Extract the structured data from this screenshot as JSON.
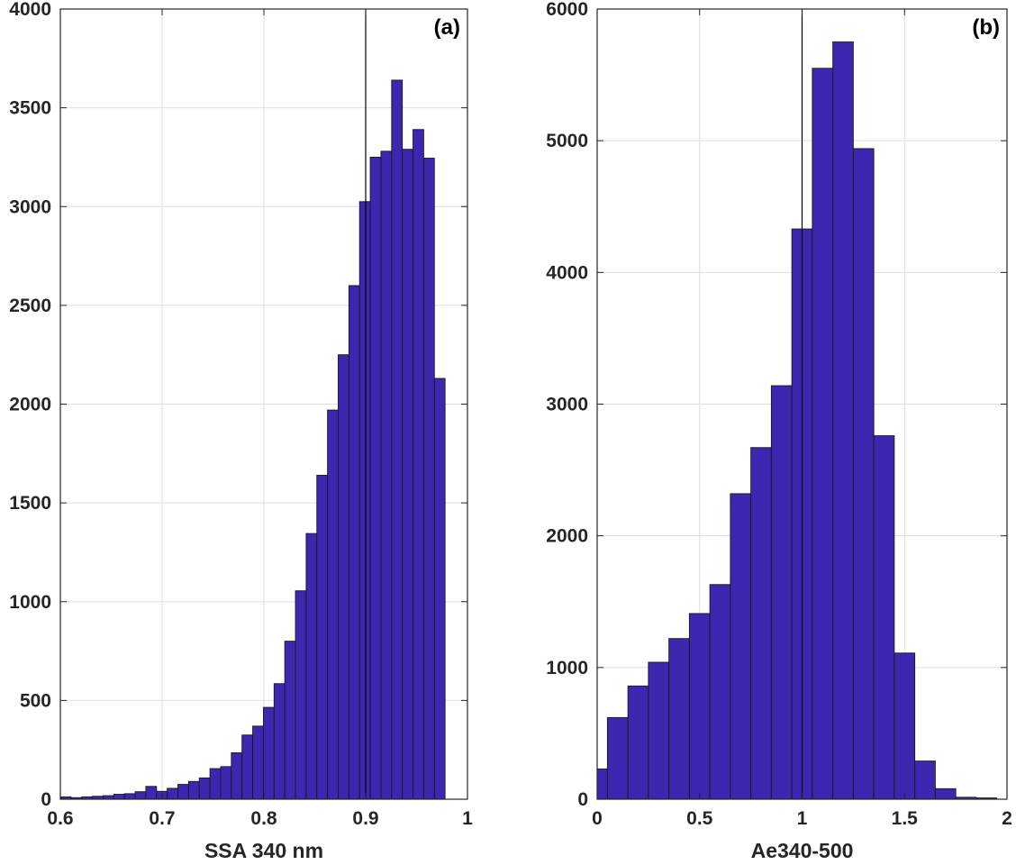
{
  "chart_data": [
    {
      "type": "bar",
      "panel_label": "(a)",
      "xlabel": "SSA 340 nm",
      "ylabel": "",
      "xlim": [
        0.6,
        1.0
      ],
      "ylim": [
        0,
        4000
      ],
      "xticks": [
        "0.6",
        "0.7",
        "0.8",
        "0.9",
        "1"
      ],
      "yticks": [
        "0",
        "500",
        "1000",
        "1500",
        "2000",
        "2500",
        "3000",
        "3500",
        "4000"
      ],
      "grid": true,
      "bin_width": 0.0105,
      "bin_edges_start": 0.6,
      "values": [
        12,
        8,
        12,
        15,
        18,
        25,
        28,
        38,
        65,
        40,
        55,
        75,
        90,
        108,
        155,
        165,
        235,
        325,
        370,
        465,
        585,
        800,
        1055,
        1345,
        1640,
        1970,
        2250,
        2600,
        3025,
        3250,
        3280,
        3640,
        3290,
        3390,
        3245,
        2130
      ],
      "reference_line_x": 0.9,
      "bar_color": "#3D27B1"
    },
    {
      "type": "bar",
      "panel_label": "(b)",
      "xlabel": "Ae340-500",
      "ylabel": "",
      "xlim": [
        0,
        2
      ],
      "ylim": [
        0,
        6000
      ],
      "xticks": [
        "0",
        "0.5",
        "1",
        "1.5",
        "2"
      ],
      "yticks": [
        "0",
        "1000",
        "2000",
        "3000",
        "4000",
        "5000",
        "6000"
      ],
      "grid": true,
      "bin_width": 0.1,
      "bin_edges_start": -0.05,
      "values": [
        230,
        620,
        860,
        1040,
        1220,
        1410,
        1630,
        2320,
        2670,
        3140,
        4330,
        5550,
        5750,
        4940,
        2760,
        1110,
        290,
        80,
        15,
        10
      ],
      "reference_line_x": 1.0,
      "bar_color": "#3D27B1"
    }
  ]
}
